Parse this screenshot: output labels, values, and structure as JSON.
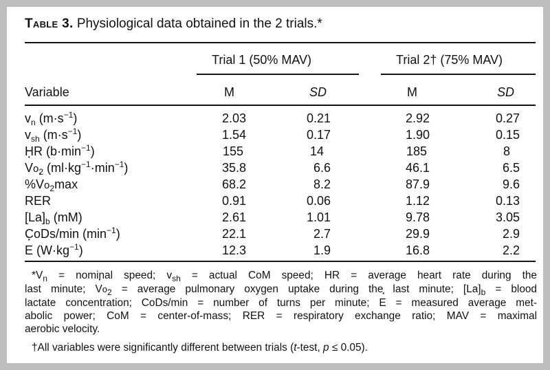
{
  "title": {
    "label": "Table 3.",
    "text": "Physiological data obtained in the 2 trials.*"
  },
  "header": {
    "trial1": "Trial 1 (50% MAV)",
    "trial2": "Trial 2† (75% MAV)",
    "variable": "Variable",
    "mean": "M",
    "sd": "SD"
  },
  "rows": [
    {
      "var": "v_n (m·s^-1)",
      "t1m": "2.03",
      "t1sd": "0.21",
      "t2m": "2.92",
      "t2sd": "0.27"
    },
    {
      "var": "v_sh (m·s^-1)",
      "t1m": "1.54",
      "t1sd": "0.17",
      "t2m": "1.90",
      "t2sd": "0.15"
    },
    {
      "var": "HR (b·min^-1)",
      "t1m": "155",
      "t1sd": "14",
      "t2m": "185",
      "t2sd": "8"
    },
    {
      "var": "V̇o2 (ml·kg^-1·min^-1)",
      "t1m": "35.8",
      "t1sd": "6.6",
      "t2m": "46.1",
      "t2sd": "6.5"
    },
    {
      "var": "%V̇o2max",
      "t1m": "68.2",
      "t1sd": "8.2",
      "t2m": "87.9",
      "t2sd": "9.6"
    },
    {
      "var": "RER",
      "t1m": "0.91",
      "t1sd": "0.06",
      "t2m": "1.12",
      "t2sd": "0.13"
    },
    {
      "var": "[La]_b (mM)",
      "t1m": "2.61",
      "t1sd": "1.01",
      "t2m": "9.78",
      "t2sd": "3.05"
    },
    {
      "var": "CoDs/min (min^-1)",
      "t1m": "22.1",
      "t1sd": "2.7",
      "t2m": "29.9",
      "t2sd": "2.9"
    },
    {
      "var": "Ė (W·kg^-1)",
      "t1m": "12.3",
      "t1sd": "1.9",
      "t2m": "16.8",
      "t2sd": "2.2"
    }
  ],
  "var_parts": {
    "vn": {
      "v": "v",
      "sub": "n",
      "unit": " (m·s",
      "exp": "−1",
      "close": ")"
    },
    "vsh": {
      "v": "v",
      "sub": "sh",
      "unit": " (m·s",
      "exp": "−1",
      "close": ")"
    },
    "hr": {
      "pre": "HR (b·min",
      "exp": "−1",
      "close": ")"
    },
    "vo2": {
      "v": "V",
      "o": "o",
      "sub": "2",
      "unit": " (ml·kg",
      "exp1": "−1",
      "mid": "·min",
      "exp2": "−1",
      "close": ")"
    },
    "pvo2": {
      "pre": "%",
      "v": "V",
      "o": "o",
      "sub": "2",
      "post": "max"
    },
    "rer": "RER",
    "la": {
      "pre": "[La]",
      "sub": "b",
      "post": " (mM)"
    },
    "cods": {
      "pre": "CoDs/min (min",
      "exp": "−1",
      "close": ")"
    },
    "e": {
      "e": "E",
      "unit": " (W·kg",
      "exp": "−1",
      "close": ")"
    }
  },
  "footnotes": {
    "star_lines": [
      "*V_n = nominal speed; v_sh = actual CoM speed; HR = average heart rate during the",
      "last minute; V̇o2 = average pulmonary oxygen uptake during the last minute; [La]_b = blood",
      "lactate concentration; CoDs/min = number of turns per minute; Ė = measured average met-",
      "abolic power; CoM = center-of-mass; RER = respiratory exchange ratio; MAV = maximal",
      "aerobic velocity."
    ],
    "dagger": "†All variables were significantly different between trials (t-test, p ≤ 0.05)."
  },
  "footnote_parts": {
    "l1a": "*V",
    "l1b": "n",
    "l1c": " = nominal speed; v",
    "l1d": "sh",
    "l1e": " = actual CoM speed; HR = average heart rate during the",
    "l2a": "last minute; ",
    "l2v": "V",
    "l2o": "o",
    "l2s": "2",
    "l2b": " = average pulmonary oxygen uptake during the last minute; [La]",
    "l2c": "b",
    "l2d": " = blood",
    "l3a": "lactate concentration; CoDs/min = number of turns per minute; ",
    "l3e": "E",
    "l3b": " = measured average met-",
    "l4": "abolic power; CoM = center-of-mass; RER = respiratory exchange ratio; MAV = maximal",
    "l5": "aerobic velocity.",
    "d1": "†All variables were significantly different between trials (",
    "d2": "t",
    "d3": "-test, ",
    "d4": "p",
    "d5": " ≤ 0.05)."
  }
}
